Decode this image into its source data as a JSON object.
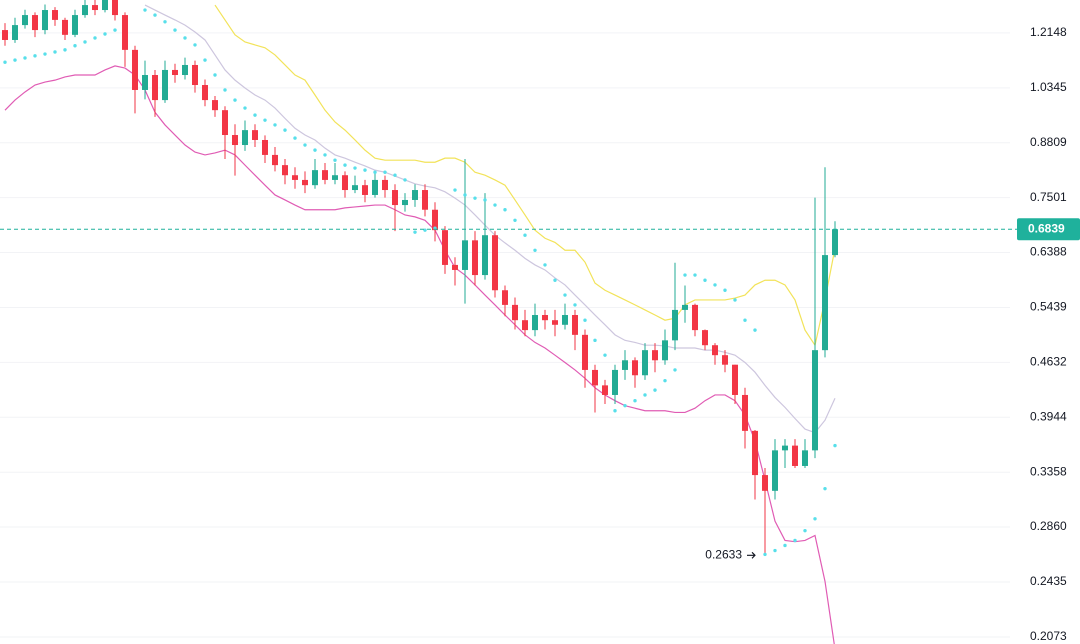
{
  "chart_data": {
    "type": "candlestick",
    "log_scale": true,
    "grid": true,
    "ylim": [
      0.2031,
      1.3377
    ],
    "yticks": [
      1.2148,
      1.0345,
      0.8809,
      0.7501,
      0.6388,
      0.5439,
      0.4632,
      0.3944,
      0.3358,
      {
        "value": 0.286,
        "label": "0.2860"
      },
      0.2435,
      0.2073
    ],
    "up_color": "#22ab94",
    "down_color": "#f23645",
    "upper_color": "#f2e35a",
    "middle_color": "#cdc6de",
    "lower_color": "#e05cb4",
    "sar_color": "#58dfea",
    "price_line_color": "#1fb19c",
    "last_price": 0.6839,
    "low_price": 0.2633,
    "open": [
      1.225,
      1.19,
      1.243,
      1.28,
      1.225,
      1.299,
      1.262,
      1.208,
      1.28,
      1.318,
      1.299,
      1.338,
      1.28,
      1.156,
      1.028,
      1.074,
      0.998,
      1.09,
      1.074,
      1.106,
      1.043,
      0.998,
      0.969,
      0.901,
      0.875,
      0.914,
      0.888,
      0.85,
      0.825,
      0.801,
      0.79,
      0.778,
      0.813,
      0.79,
      0.801,
      0.767,
      0.778,
      0.756,
      0.79,
      0.767,
      0.734,
      0.745,
      0.767,
      0.724,
      0.682,
      0.616,
      0.607,
      0.662,
      0.598,
      0.672,
      0.572,
      0.548,
      0.524,
      0.509,
      0.532,
      0.524,
      0.517,
      0.532,
      0.502,
      0.453,
      0.433,
      0.421,
      0.453,
      0.466,
      0.446,
      0.48,
      0.466,
      0.494,
      0.54,
      0.548,
      0.509,
      0.487,
      0.473,
      0.46,
      0.421,
      0.379,
      0.333,
      0.318,
      0.358,
      0.363,
      0.342,
      0.358,
      0.48,
      0.634
    ],
    "close": [
      1.19,
      1.243,
      1.28,
      1.225,
      1.299,
      1.262,
      1.208,
      1.28,
      1.318,
      1.299,
      1.338,
      1.28,
      1.156,
      1.028,
      1.074,
      0.998,
      1.09,
      1.074,
      1.106,
      1.043,
      0.998,
      0.969,
      0.901,
      0.875,
      0.914,
      0.888,
      0.85,
      0.825,
      0.801,
      0.79,
      0.778,
      0.813,
      0.79,
      0.801,
      0.767,
      0.778,
      0.756,
      0.79,
      0.767,
      0.734,
      0.745,
      0.767,
      0.724,
      0.682,
      0.616,
      0.607,
      0.662,
      0.598,
      0.672,
      0.572,
      0.548,
      0.524,
      0.509,
      0.532,
      0.524,
      0.517,
      0.532,
      0.502,
      0.453,
      0.433,
      0.421,
      0.453,
      0.466,
      0.446,
      0.48,
      0.466,
      0.494,
      0.54,
      0.548,
      0.509,
      0.487,
      0.473,
      0.46,
      0.421,
      0.379,
      0.333,
      0.318,
      0.358,
      0.363,
      0.342,
      0.358,
      0.48,
      0.634,
      0.6839
    ],
    "high": [
      1.25,
      1.27,
      1.3,
      1.29,
      1.32,
      1.31,
      1.27,
      1.3,
      1.34,
      1.34,
      1.36,
      1.35,
      1.29,
      1.17,
      1.12,
      1.09,
      1.12,
      1.11,
      1.13,
      1.12,
      1.06,
      1.01,
      0.98,
      0.93,
      0.94,
      0.93,
      0.9,
      0.87,
      0.84,
      0.82,
      0.81,
      0.84,
      0.83,
      0.83,
      0.81,
      0.8,
      0.79,
      0.81,
      0.8,
      0.78,
      0.76,
      0.78,
      0.78,
      0.74,
      0.69,
      0.63,
      0.84,
      0.68,
      0.76,
      0.68,
      0.58,
      0.56,
      0.54,
      0.55,
      0.54,
      0.54,
      0.55,
      0.54,
      0.51,
      0.46,
      0.44,
      0.46,
      0.48,
      0.47,
      0.49,
      0.49,
      0.51,
      0.62,
      0.58,
      0.55,
      0.51,
      0.49,
      0.48,
      0.46,
      0.43,
      0.38,
      0.34,
      0.37,
      0.37,
      0.37,
      0.37,
      0.75,
      0.82,
      0.7
    ],
    "low": [
      1.17,
      1.18,
      1.23,
      1.2,
      1.21,
      1.24,
      1.19,
      1.2,
      1.27,
      1.28,
      1.29,
      1.26,
      1.1,
      0.96,
      1.0,
      0.95,
      0.99,
      1.05,
      1.06,
      1.02,
      0.98,
      0.95,
      0.84,
      0.8,
      0.86,
      0.87,
      0.83,
      0.81,
      0.78,
      0.77,
      0.76,
      0.77,
      0.78,
      0.78,
      0.75,
      0.76,
      0.74,
      0.75,
      0.75,
      0.68,
      0.72,
      0.73,
      0.71,
      0.66,
      0.6,
      0.58,
      0.55,
      0.58,
      0.59,
      0.56,
      0.53,
      0.51,
      0.5,
      0.5,
      0.51,
      0.5,
      0.51,
      0.48,
      0.43,
      0.4,
      0.41,
      0.41,
      0.44,
      0.43,
      0.44,
      0.45,
      0.46,
      0.48,
      0.52,
      0.5,
      0.48,
      0.46,
      0.45,
      0.41,
      0.36,
      0.31,
      0.2633,
      0.31,
      0.34,
      0.34,
      0.34,
      0.35,
      0.47,
      0.63
    ],
    "upper": [
      null,
      null,
      null,
      null,
      null,
      null,
      null,
      null,
      null,
      null,
      null,
      null,
      null,
      null,
      null,
      null,
      null,
      null,
      null,
      null,
      null,
      1.318,
      1.262,
      1.208,
      1.183,
      1.173,
      1.163,
      1.139,
      1.106,
      1.074,
      1.058,
      1.013,
      0.969,
      0.936,
      0.914,
      0.888,
      0.862,
      0.842,
      0.837,
      0.837,
      0.837,
      0.837,
      0.832,
      0.832,
      0.842,
      0.842,
      0.832,
      0.808,
      0.801,
      0.79,
      0.778,
      0.745,
      0.713,
      0.682,
      0.666,
      0.658,
      0.643,
      0.643,
      0.621,
      0.584,
      0.572,
      0.564,
      0.556,
      0.548,
      0.54,
      0.532,
      0.524,
      0.527,
      0.548,
      0.556,
      0.556,
      0.556,
      0.556,
      0.559,
      0.564,
      0.581,
      0.589,
      0.589,
      0.581,
      0.556,
      0.509,
      0.487,
      0.556,
      0.647
    ],
    "middle": [
      null,
      null,
      null,
      null,
      null,
      null,
      null,
      null,
      null,
      null,
      null,
      null,
      null,
      null,
      1.318,
      1.299,
      1.28,
      1.262,
      1.243,
      1.218,
      1.19,
      1.139,
      1.09,
      1.058,
      1.034,
      1.013,
      0.998,
      0.975,
      0.946,
      0.919,
      0.901,
      0.888,
      0.867,
      0.85,
      0.842,
      0.832,
      0.823,
      0.813,
      0.808,
      0.799,
      0.79,
      0.781,
      0.776,
      0.772,
      0.763,
      0.749,
      0.734,
      0.713,
      0.692,
      0.672,
      0.657,
      0.643,
      0.628,
      0.616,
      0.607,
      0.593,
      0.581,
      0.564,
      0.548,
      0.532,
      0.517,
      0.502,
      0.494,
      0.491,
      0.487,
      0.487,
      0.486,
      0.483,
      0.483,
      0.483,
      0.48,
      0.48,
      0.477,
      0.473,
      0.463,
      0.45,
      0.433,
      0.418,
      0.406,
      0.393,
      0.381,
      0.377,
      0.391,
      0.417
    ],
    "lower": [
      0.969,
      0.998,
      1.022,
      1.043,
      1.052,
      1.058,
      1.068,
      1.074,
      1.074,
      1.074,
      1.09,
      1.103,
      1.096,
      1.074,
      1.028,
      0.963,
      0.928,
      0.901,
      0.875,
      0.857,
      0.85,
      0.855,
      0.862,
      0.85,
      0.825,
      0.801,
      0.778,
      0.756,
      0.745,
      0.734,
      0.724,
      0.724,
      0.724,
      0.724,
      0.728,
      0.73,
      0.732,
      0.734,
      0.734,
      0.724,
      0.713,
      0.709,
      0.702,
      0.682,
      0.643,
      0.611,
      0.598,
      0.581,
      0.564,
      0.548,
      0.532,
      0.517,
      0.502,
      0.491,
      0.483,
      0.473,
      0.463,
      0.453,
      0.442,
      0.43,
      0.421,
      0.414,
      0.408,
      0.405,
      0.402,
      0.402,
      0.402,
      0.4,
      0.4,
      0.405,
      0.414,
      0.421,
      0.421,
      0.414,
      0.397,
      0.368,
      0.328,
      0.291,
      0.275,
      0.274,
      0.275,
      0.279,
      0.244,
      0.2
    ],
    "sar": [
      1.115,
      1.122,
      1.129,
      1.136,
      1.142,
      1.149,
      1.156,
      1.17,
      1.183,
      1.197,
      1.211,
      1.225,
      null,
      null,
      1.299,
      1.28,
      1.255,
      1.225,
      1.197,
      1.173,
      1.122,
      1.074,
      1.028,
      0.998,
      0.975,
      0.955,
      0.941,
      0.928,
      0.914,
      0.893,
      0.875,
      0.862,
      0.85,
      0.837,
      0.825,
      0.818,
      0.813,
      0.808,
      0.808,
      0.801,
      0.79,
      0.678,
      0.682,
      0.686,
      null,
      0.767,
      0.756,
      0.749,
      0.745,
      0.734,
      0.724,
      0.702,
      0.672,
      0.643,
      0.616,
      0.589,
      0.564,
      0.548,
      0.524,
      0.494,
      0.473,
      0.402,
      0.408,
      0.414,
      0.421,
      0.427,
      0.439,
      0.453,
      0.598,
      0.598,
      0.589,
      0.581,
      0.572,
      0.556,
      0.524,
      0.509,
      0.264,
      0.267,
      0.271,
      0.275,
      0.283,
      0.293,
      0.32,
      0.363
    ]
  }
}
